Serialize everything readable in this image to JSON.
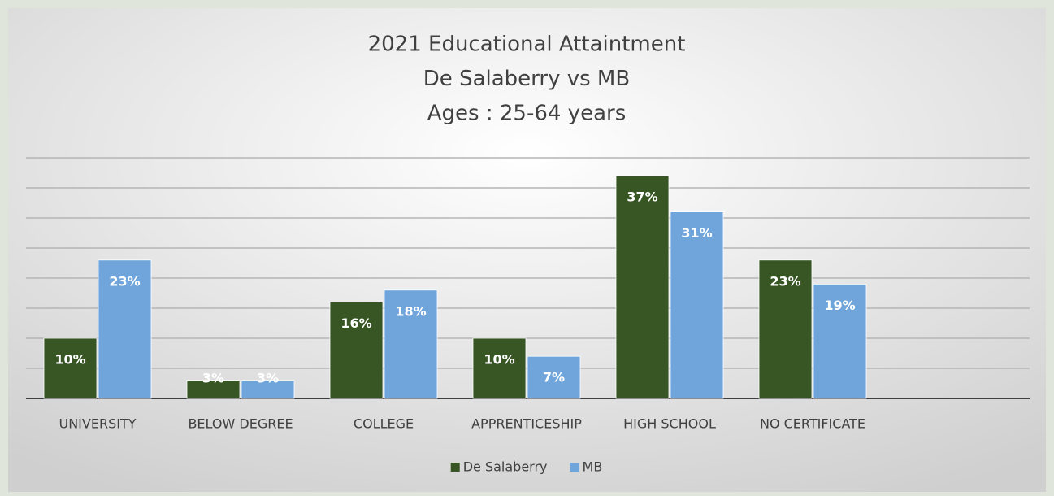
{
  "chart_data": {
    "type": "bar",
    "title": [
      "2021 Educational Attaintment",
      "De Salaberry vs MB",
      "Ages : 25-64 years"
    ],
    "categories": [
      "UNIVERSITY",
      "BELOW DEGREE",
      "COLLEGE",
      "APPRENTICESHIP",
      "HIGH SCHOOL",
      "NO CERTIFICATE",
      null
    ],
    "series": [
      {
        "name": "De Salaberry",
        "color": "#375623",
        "values": [
          10,
          3,
          16,
          10,
          37,
          23,
          null
        ],
        "value_labels": [
          "10%",
          "3%",
          "16%",
          "10%",
          "37%",
          "23%",
          null
        ]
      },
      {
        "name": "MB",
        "color": "#6fa5da",
        "values": [
          23,
          3,
          18,
          7,
          31,
          19,
          null
        ],
        "value_labels": [
          "23%",
          "3%",
          "18%",
          "7%",
          "31%",
          "19%",
          null
        ]
      }
    ],
    "ylim": [
      0,
      40
    ],
    "yticks": [
      0,
      5,
      10,
      15,
      20,
      25,
      30,
      35,
      40
    ],
    "grid": true,
    "legend": "bottom"
  }
}
